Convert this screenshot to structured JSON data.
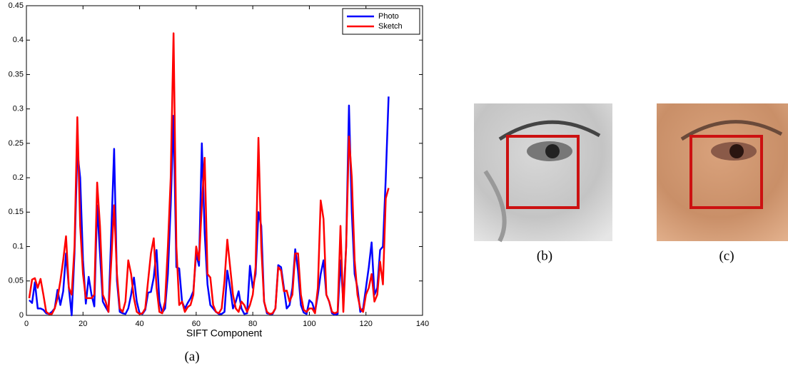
{
  "chart_data": {
    "type": "line",
    "x_label": "SIFT Component",
    "x": [
      1,
      2,
      3,
      4,
      5,
      6,
      7,
      8,
      9,
      10,
      11,
      12,
      13,
      14,
      15,
      16,
      17,
      18,
      19,
      20,
      21,
      22,
      23,
      24,
      25,
      26,
      27,
      28,
      29,
      30,
      31,
      32,
      33,
      34,
      35,
      36,
      37,
      38,
      39,
      40,
      41,
      42,
      43,
      44,
      45,
      46,
      47,
      48,
      49,
      50,
      51,
      52,
      53,
      54,
      55,
      56,
      57,
      58,
      59,
      60,
      61,
      62,
      63,
      64,
      65,
      66,
      67,
      68,
      69,
      70,
      71,
      72,
      73,
      74,
      75,
      76,
      77,
      78,
      79,
      80,
      81,
      82,
      83,
      84,
      85,
      86,
      87,
      88,
      89,
      90,
      91,
      92,
      93,
      94,
      95,
      96,
      97,
      98,
      99,
      100,
      101,
      102,
      103,
      104,
      105,
      106,
      107,
      108,
      109,
      110,
      111,
      112,
      113,
      114,
      115,
      116,
      117,
      118,
      119,
      120,
      121,
      122,
      123,
      124,
      125,
      126,
      127,
      128
    ],
    "series": [
      {
        "name": "Photo",
        "color": "#0000ff",
        "values": [
          0.022,
          0.018,
          0.048,
          0.01,
          0.01,
          0.008,
          0.003,
          0.002,
          0.005,
          0.01,
          0.037,
          0.015,
          0.035,
          0.09,
          0.04,
          0.0,
          0.09,
          0.24,
          0.2,
          0.08,
          0.017,
          0.056,
          0.03,
          0.013,
          0.16,
          0.09,
          0.02,
          0.012,
          0.005,
          0.12,
          0.242,
          0.05,
          0.005,
          0.003,
          0.002,
          0.01,
          0.03,
          0.055,
          0.02,
          0.003,
          0.002,
          0.008,
          0.033,
          0.034,
          0.055,
          0.095,
          0.02,
          0.004,
          0.01,
          0.06,
          0.16,
          0.29,
          0.07,
          0.068,
          0.02,
          0.01,
          0.018,
          0.025,
          0.035,
          0.09,
          0.072,
          0.25,
          0.12,
          0.045,
          0.015,
          0.01,
          0.005,
          0.002,
          0.002,
          0.005,
          0.065,
          0.04,
          0.01,
          0.02,
          0.035,
          0.01,
          0.002,
          0.003,
          0.072,
          0.04,
          0.06,
          0.15,
          0.13,
          0.02,
          0.003,
          0.002,
          0.002,
          0.01,
          0.073,
          0.07,
          0.04,
          0.01,
          0.015,
          0.04,
          0.096,
          0.065,
          0.015,
          0.004,
          0.002,
          0.022,
          0.018,
          0.005,
          0.03,
          0.06,
          0.08,
          0.03,
          0.02,
          0.003,
          0.001,
          0.002,
          0.08,
          0.02,
          0.1,
          0.305,
          0.15,
          0.06,
          0.04,
          0.005,
          0.01,
          0.04,
          0.07,
          0.106,
          0.03,
          0.04,
          0.095,
          0.1,
          0.2,
          0.318
        ]
      },
      {
        "name": "Sketch",
        "color": "#ff0000",
        "values": [
          0.025,
          0.052,
          0.054,
          0.04,
          0.053,
          0.03,
          0.005,
          0.002,
          0.002,
          0.01,
          0.025,
          0.05,
          0.08,
          0.115,
          0.04,
          0.03,
          0.1,
          0.288,
          0.13,
          0.06,
          0.025,
          0.025,
          0.025,
          0.03,
          0.193,
          0.13,
          0.03,
          0.02,
          0.005,
          0.08,
          0.16,
          0.06,
          0.01,
          0.005,
          0.02,
          0.08,
          0.06,
          0.025,
          0.005,
          0.002,
          0.003,
          0.01,
          0.05,
          0.09,
          0.112,
          0.04,
          0.005,
          0.003,
          0.02,
          0.1,
          0.2,
          0.41,
          0.1,
          0.015,
          0.02,
          0.005,
          0.012,
          0.015,
          0.03,
          0.1,
          0.08,
          0.16,
          0.229,
          0.06,
          0.055,
          0.015,
          0.005,
          0.003,
          0.01,
          0.05,
          0.11,
          0.07,
          0.03,
          0.01,
          0.005,
          0.02,
          0.015,
          0.005,
          0.015,
          0.03,
          0.07,
          0.258,
          0.1,
          0.02,
          0.005,
          0.002,
          0.003,
          0.01,
          0.07,
          0.065,
          0.035,
          0.036,
          0.02,
          0.03,
          0.09,
          0.09,
          0.03,
          0.008,
          0.005,
          0.01,
          0.01,
          0.003,
          0.04,
          0.167,
          0.14,
          0.03,
          0.02,
          0.005,
          0.003,
          0.005,
          0.13,
          0.005,
          0.1,
          0.26,
          0.2,
          0.08,
          0.03,
          0.01,
          0.005,
          0.03,
          0.04,
          0.06,
          0.02,
          0.03,
          0.078,
          0.045,
          0.17,
          0.185
        ]
      }
    ],
    "xlim": [
      0,
      140
    ],
    "xticks": [
      0,
      20,
      40,
      60,
      80,
      100,
      120,
      140
    ],
    "ylim": [
      0,
      0.45
    ],
    "yticks": [
      0,
      0.05,
      0.1,
      0.15,
      0.2,
      0.25,
      0.3,
      0.35,
      0.4,
      0.45
    ],
    "legend": "top-right"
  },
  "captions": [
    "(a)",
    "(b)",
    "(c)"
  ]
}
